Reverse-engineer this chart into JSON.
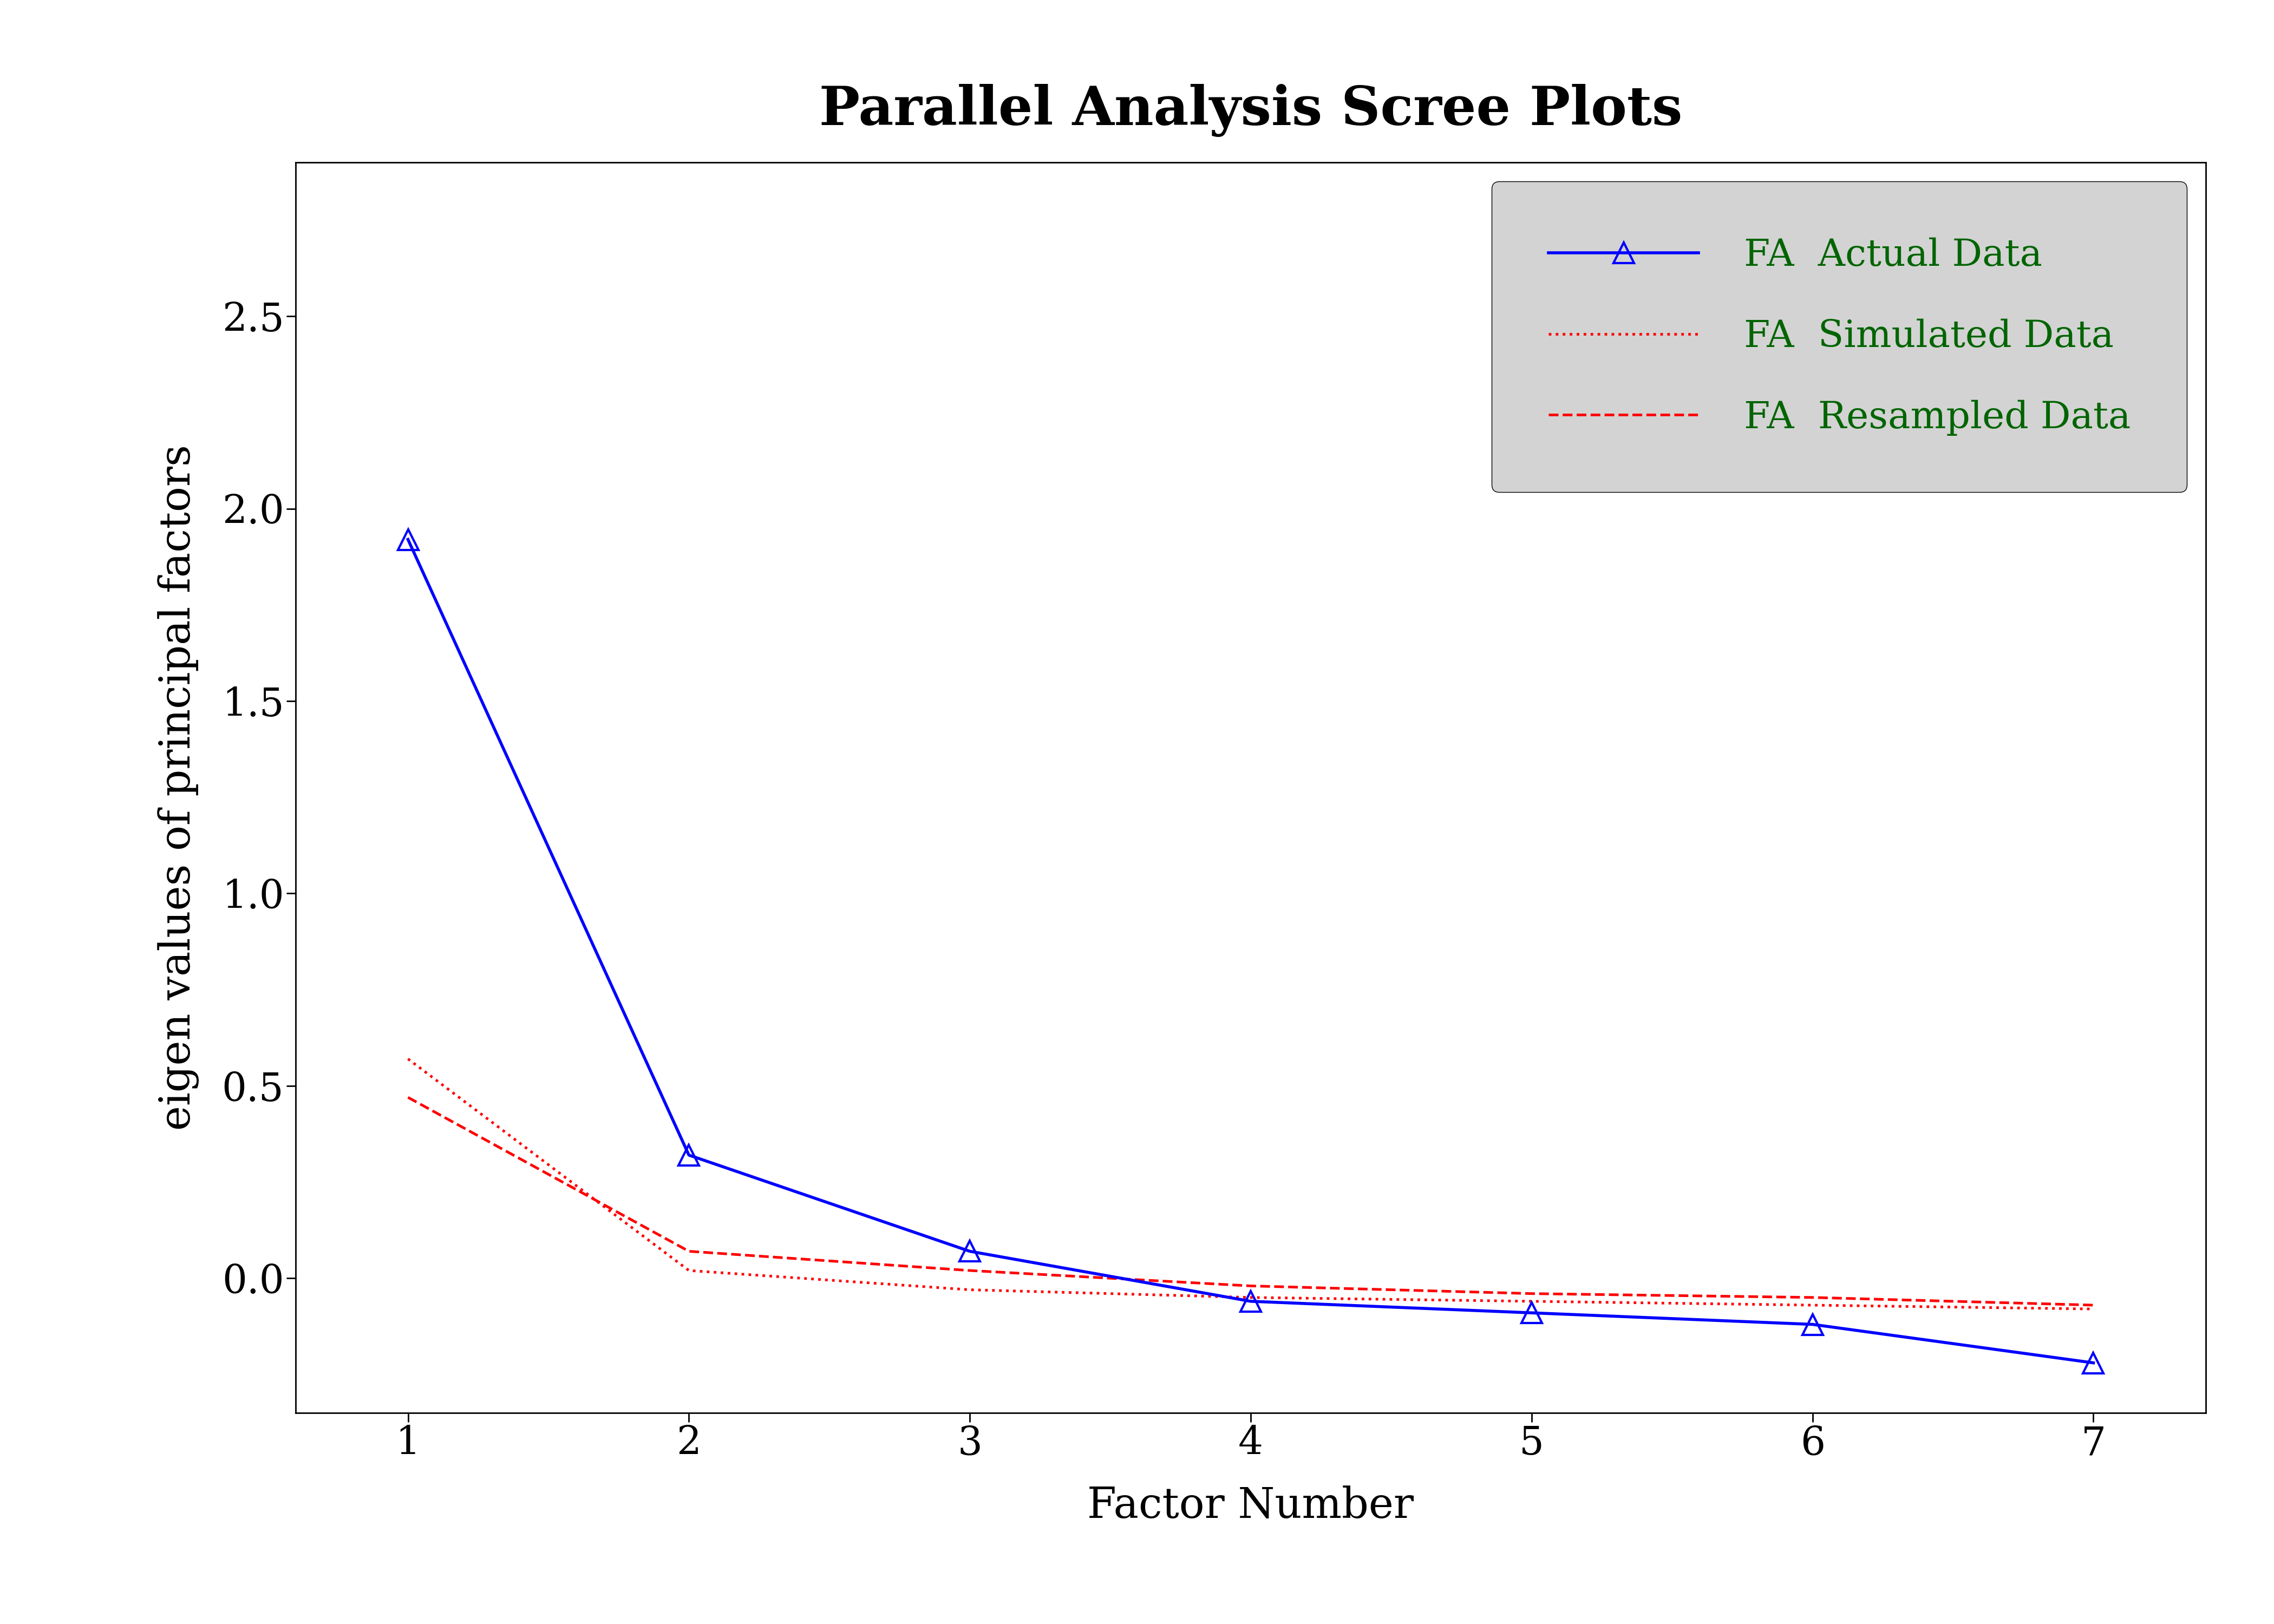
{
  "title": "Parallel Analysis Scree Plots",
  "xlabel": "Factor Number",
  "ylabel": "eigen values of principal factors",
  "background_color": "#ffffff",
  "plot_bg_color": "#ffffff",
  "fa_actual_x": [
    1,
    2,
    3,
    4,
    5,
    6,
    7
  ],
  "fa_actual_y": [
    1.92,
    0.32,
    0.07,
    -0.06,
    -0.09,
    -0.12,
    -0.22
  ],
  "fa_simulated_y": [
    0.57,
    0.02,
    -0.03,
    -0.05,
    -0.06,
    -0.07,
    -0.08
  ],
  "fa_resampled_y": [
    0.47,
    0.07,
    0.02,
    -0.02,
    -0.04,
    -0.05,
    -0.07
  ],
  "fa_actual_color": "#0000ff",
  "fa_simulated_color": "#ff0000",
  "fa_resampled_color": "#ff0000",
  "legend_bg_color": "#d3d3d3",
  "title_fontsize": 72,
  "label_fontsize": 56,
  "tick_fontsize": 52,
  "legend_fontsize": 50,
  "legend_text_color": "#006400",
  "ylim": [
    -0.35,
    2.9
  ],
  "yticks": [
    0.0,
    0.5,
    1.0,
    1.5,
    2.0,
    2.5
  ],
  "ytick_labels": [
    "0.0",
    "0.5",
    "1.0",
    "1.5",
    "2.0",
    "2.5"
  ],
  "xticks": [
    1,
    2,
    3,
    4,
    5,
    6,
    7
  ]
}
